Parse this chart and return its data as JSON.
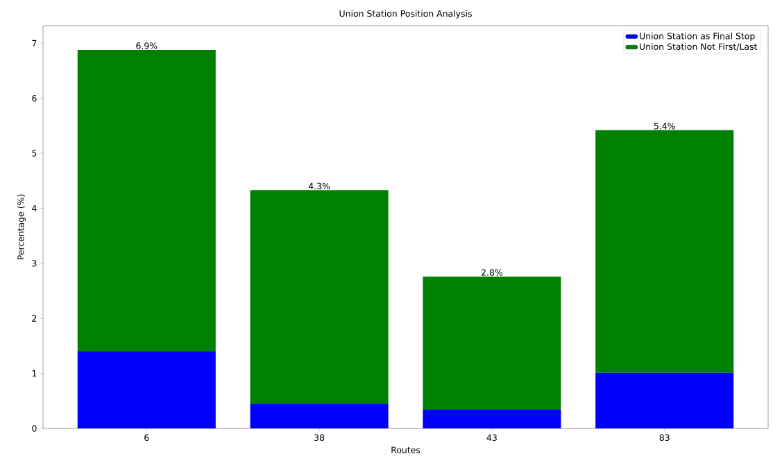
{
  "chart_data": {
    "type": "bar",
    "title": "Union Station Position Analysis",
    "xlabel": "Routes",
    "ylabel": "Percentage (%)",
    "categories": [
      "6",
      "38",
      "43",
      "83"
    ],
    "series": [
      {
        "name": "Union Station as Final Stop",
        "color": "#0000ff",
        "values": [
          1.4,
          0.44,
          0.34,
          1.01
        ]
      },
      {
        "name": "Union Station Not First/Last",
        "color": "#008000",
        "values": [
          5.48,
          3.89,
          2.42,
          4.41
        ]
      }
    ],
    "stacked": true,
    "totals": [
      "6.9%",
      "4.3%",
      "2.8%",
      "5.4%"
    ],
    "ylim": [
      0,
      7.32
    ],
    "yticks": [
      0,
      1,
      2,
      3,
      4,
      5,
      6,
      7
    ],
    "grid": false,
    "legend": "top right"
  }
}
